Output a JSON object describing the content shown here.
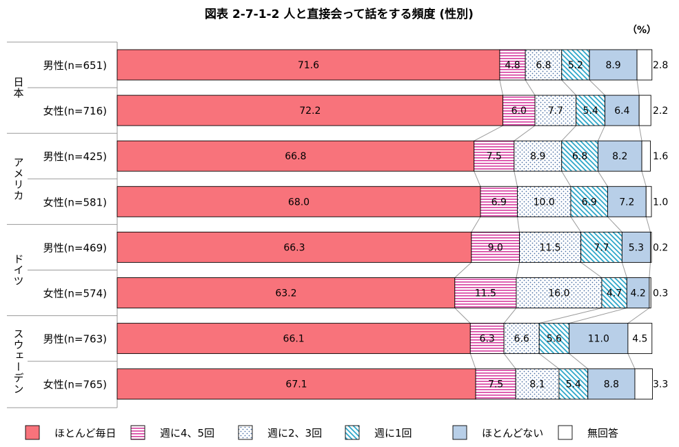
{
  "chart_data": {
    "type": "bar",
    "orientation": "horizontal",
    "stacked": true,
    "percent_stacked": true,
    "title": "図表 2-7-1-2  人と直接会って話をする頻度 (性別)",
    "unit": "（%）",
    "xlim": [
      0,
      100
    ],
    "grid": false,
    "legend_position": "bottom",
    "groups": [
      {
        "name": "日本",
        "categories": [
          "男性(n=651)",
          "女性(n=716)"
        ]
      },
      {
        "name": "アメリカ",
        "categories": [
          "男性(n=425)",
          "女性(n=581)"
        ]
      },
      {
        "name": "ドイツ",
        "categories": [
          "男性(n=469)",
          "女性(n=574)"
        ]
      },
      {
        "name": "スウェーデン",
        "categories": [
          "男性(n=763)",
          "女性(n=765)"
        ]
      }
    ],
    "categories": [
      "男性(n=651)",
      "女性(n=716)",
      "男性(n=425)",
      "女性(n=581)",
      "男性(n=469)",
      "女性(n=574)",
      "男性(n=763)",
      "女性(n=765)"
    ],
    "series": [
      {
        "name": "ほとんど毎日",
        "color": "#F8737B",
        "pattern": "solid",
        "values": [
          71.6,
          72.2,
          66.8,
          68.0,
          66.3,
          63.2,
          66.1,
          67.1
        ],
        "labels": [
          "71.6",
          "72.2",
          "66.8",
          "68.0",
          "66.3",
          "63.2",
          "66.1",
          "67.1"
        ]
      },
      {
        "name": "週に4、5回",
        "color": "#D63A9E",
        "pattern": "horizontal-lines",
        "values": [
          4.8,
          6.0,
          7.5,
          6.9,
          9.0,
          11.5,
          6.3,
          7.5
        ],
        "labels": [
          "4.8",
          "6.0",
          "7.5",
          "6.9",
          "9.0",
          "11.5",
          "6.3",
          "7.5"
        ]
      },
      {
        "name": "週に2、3回",
        "color": "#4A6FA5",
        "pattern": "dots",
        "values": [
          6.8,
          7.7,
          8.9,
          10.0,
          11.5,
          16.0,
          6.6,
          8.1
        ],
        "labels": [
          "6.8",
          "7.7",
          "8.9",
          "10.0",
          "11.5",
          "16.0",
          "6.6",
          "8.1"
        ]
      },
      {
        "name": "週に1回",
        "color": "#2AA5C8",
        "pattern": "diagonal-lines",
        "values": [
          5.2,
          5.4,
          6.8,
          6.9,
          7.7,
          4.7,
          5.6,
          5.4
        ],
        "labels": [
          "5.2",
          "5.4",
          "6.8",
          "6.9",
          "7.7",
          "4.7",
          "5.6",
          "5.4"
        ]
      },
      {
        "name": "ほとんどない",
        "color": "#B8CFE8",
        "pattern": "solid",
        "values": [
          8.9,
          6.4,
          8.2,
          7.2,
          5.3,
          4.2,
          11.0,
          8.8
        ],
        "labels": [
          "8.9",
          "6.4",
          "8.2",
          "7.2",
          "5.3",
          "4.2",
          "11.0",
          "8.8"
        ]
      },
      {
        "name": "無回答",
        "color": "#FFFFFF",
        "pattern": "solid",
        "values": [
          2.8,
          2.2,
          1.6,
          1.0,
          0.2,
          0.3,
          4.5,
          3.3
        ],
        "labels": [
          "2.8",
          "2.2",
          "1.6",
          "1.0",
          "0.2",
          "0.3",
          "4.5",
          "3.3"
        ]
      }
    ]
  }
}
